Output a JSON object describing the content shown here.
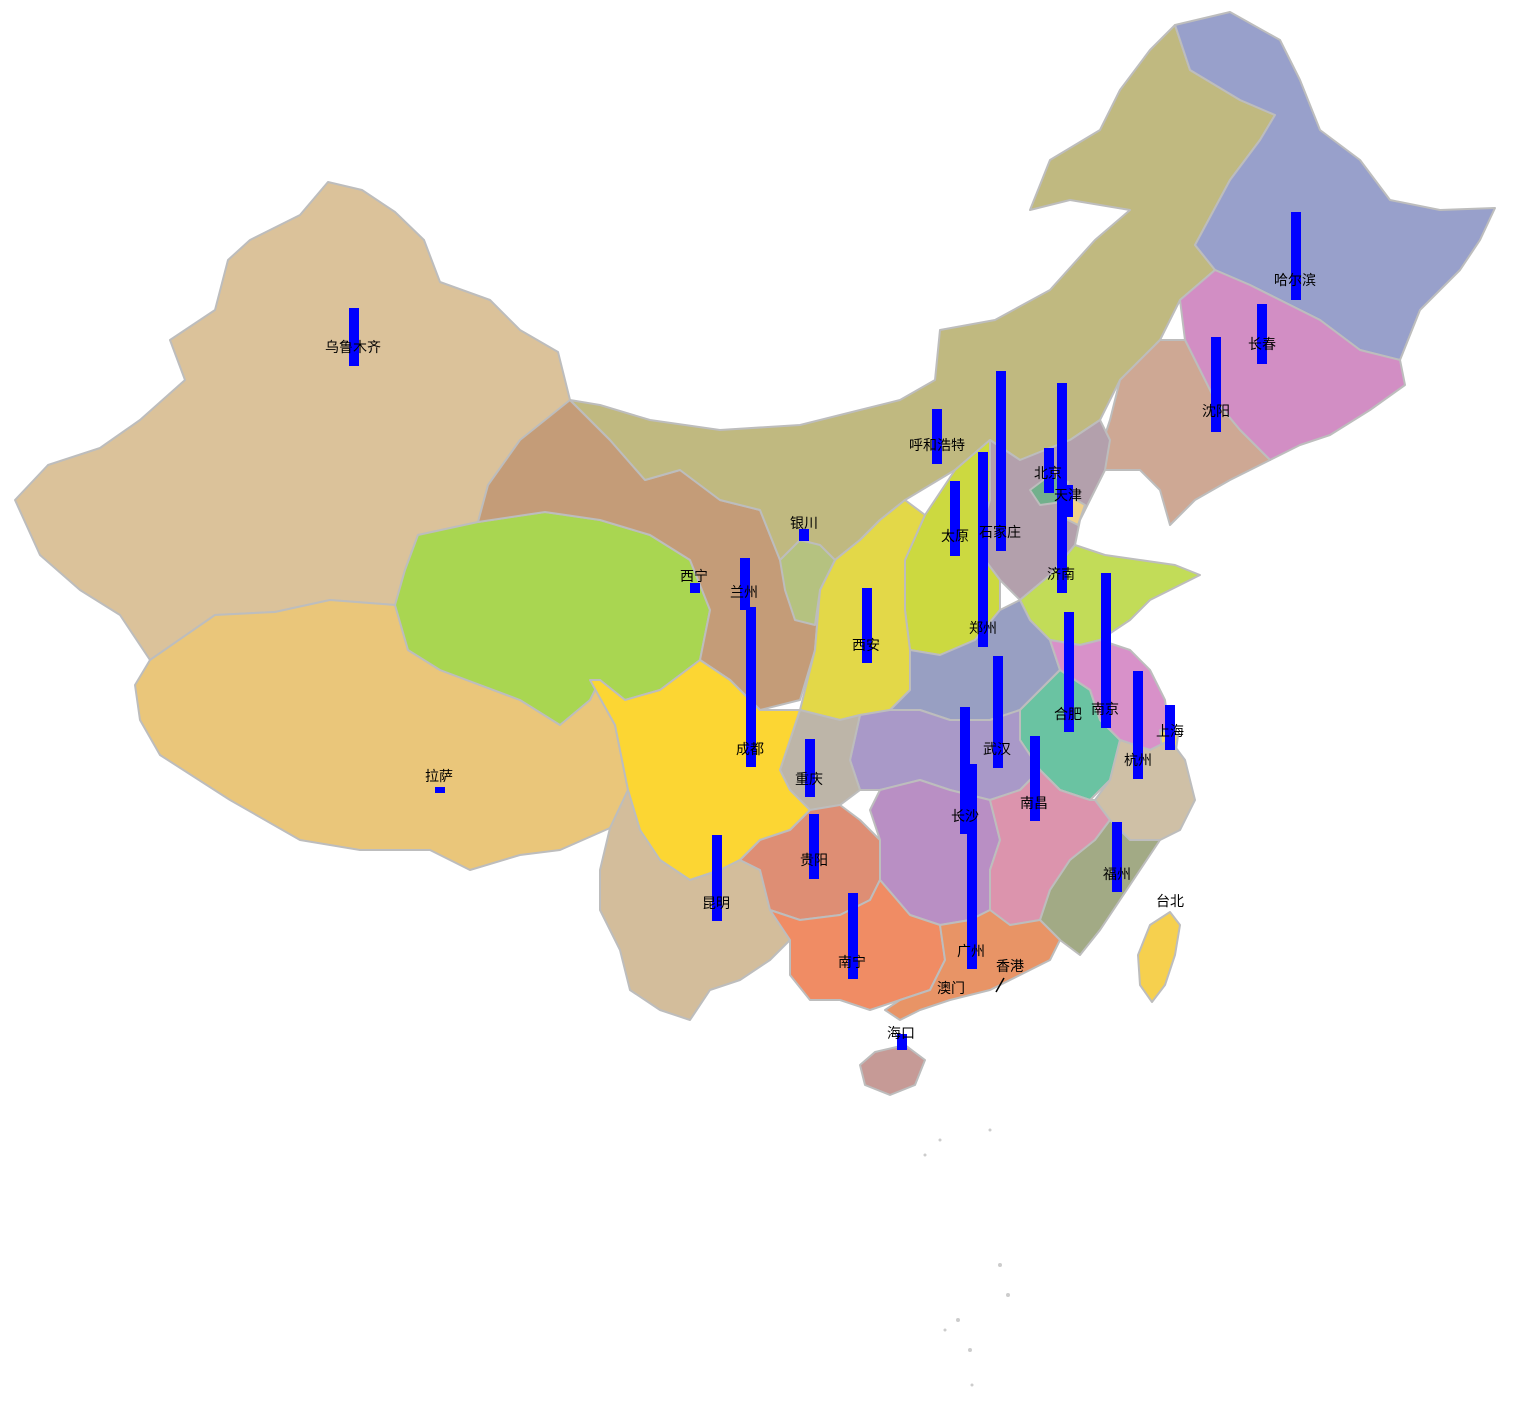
{
  "colors": {
    "bar": "#0000ff",
    "border": "#bdbdbd"
  },
  "cities": [
    {
      "name": "乌鲁木齐",
      "value": 58
    },
    {
      "name": "拉萨",
      "value": 5
    },
    {
      "name": "西宁",
      "value": 10
    },
    {
      "name": "兰州",
      "value": 52
    },
    {
      "name": "银川",
      "value": 12
    },
    {
      "name": "呼和浩特",
      "value": 55
    },
    {
      "name": "北京",
      "value": 45
    },
    {
      "name": "天津",
      "value": 32
    },
    {
      "name": "石家庄",
      "value": 180
    },
    {
      "name": "太原",
      "value": 75
    },
    {
      "name": "济南",
      "value": 210
    },
    {
      "name": "郑州",
      "value": 195
    },
    {
      "name": "西安",
      "value": 75
    },
    {
      "name": "成都",
      "value": 160
    },
    {
      "name": "重庆",
      "value": 58
    },
    {
      "name": "贵阳",
      "value": 65
    },
    {
      "name": "昆明",
      "value": 86
    },
    {
      "name": "南宁",
      "value": 86
    },
    {
      "name": "广州",
      "value": 205
    },
    {
      "name": "长沙",
      "value": 127
    },
    {
      "name": "武汉",
      "value": 112
    },
    {
      "name": "南昌",
      "value": 85
    },
    {
      "name": "合肥",
      "value": 120
    },
    {
      "name": "南京",
      "value": 155
    },
    {
      "name": "杭州",
      "value": 108
    },
    {
      "name": "上海",
      "value": 45
    },
    {
      "name": "福州",
      "value": 70
    },
    {
      "name": "海口",
      "value": 16
    },
    {
      "name": "沈阳",
      "value": 95
    },
    {
      "name": "长春",
      "value": 60
    },
    {
      "name": "哈尔滨",
      "value": 88
    },
    {
      "name": "台北",
      "value": 0
    },
    {
      "name": "香港",
      "value": 0
    },
    {
      "name": "澳门",
      "value": 0
    }
  ]
}
